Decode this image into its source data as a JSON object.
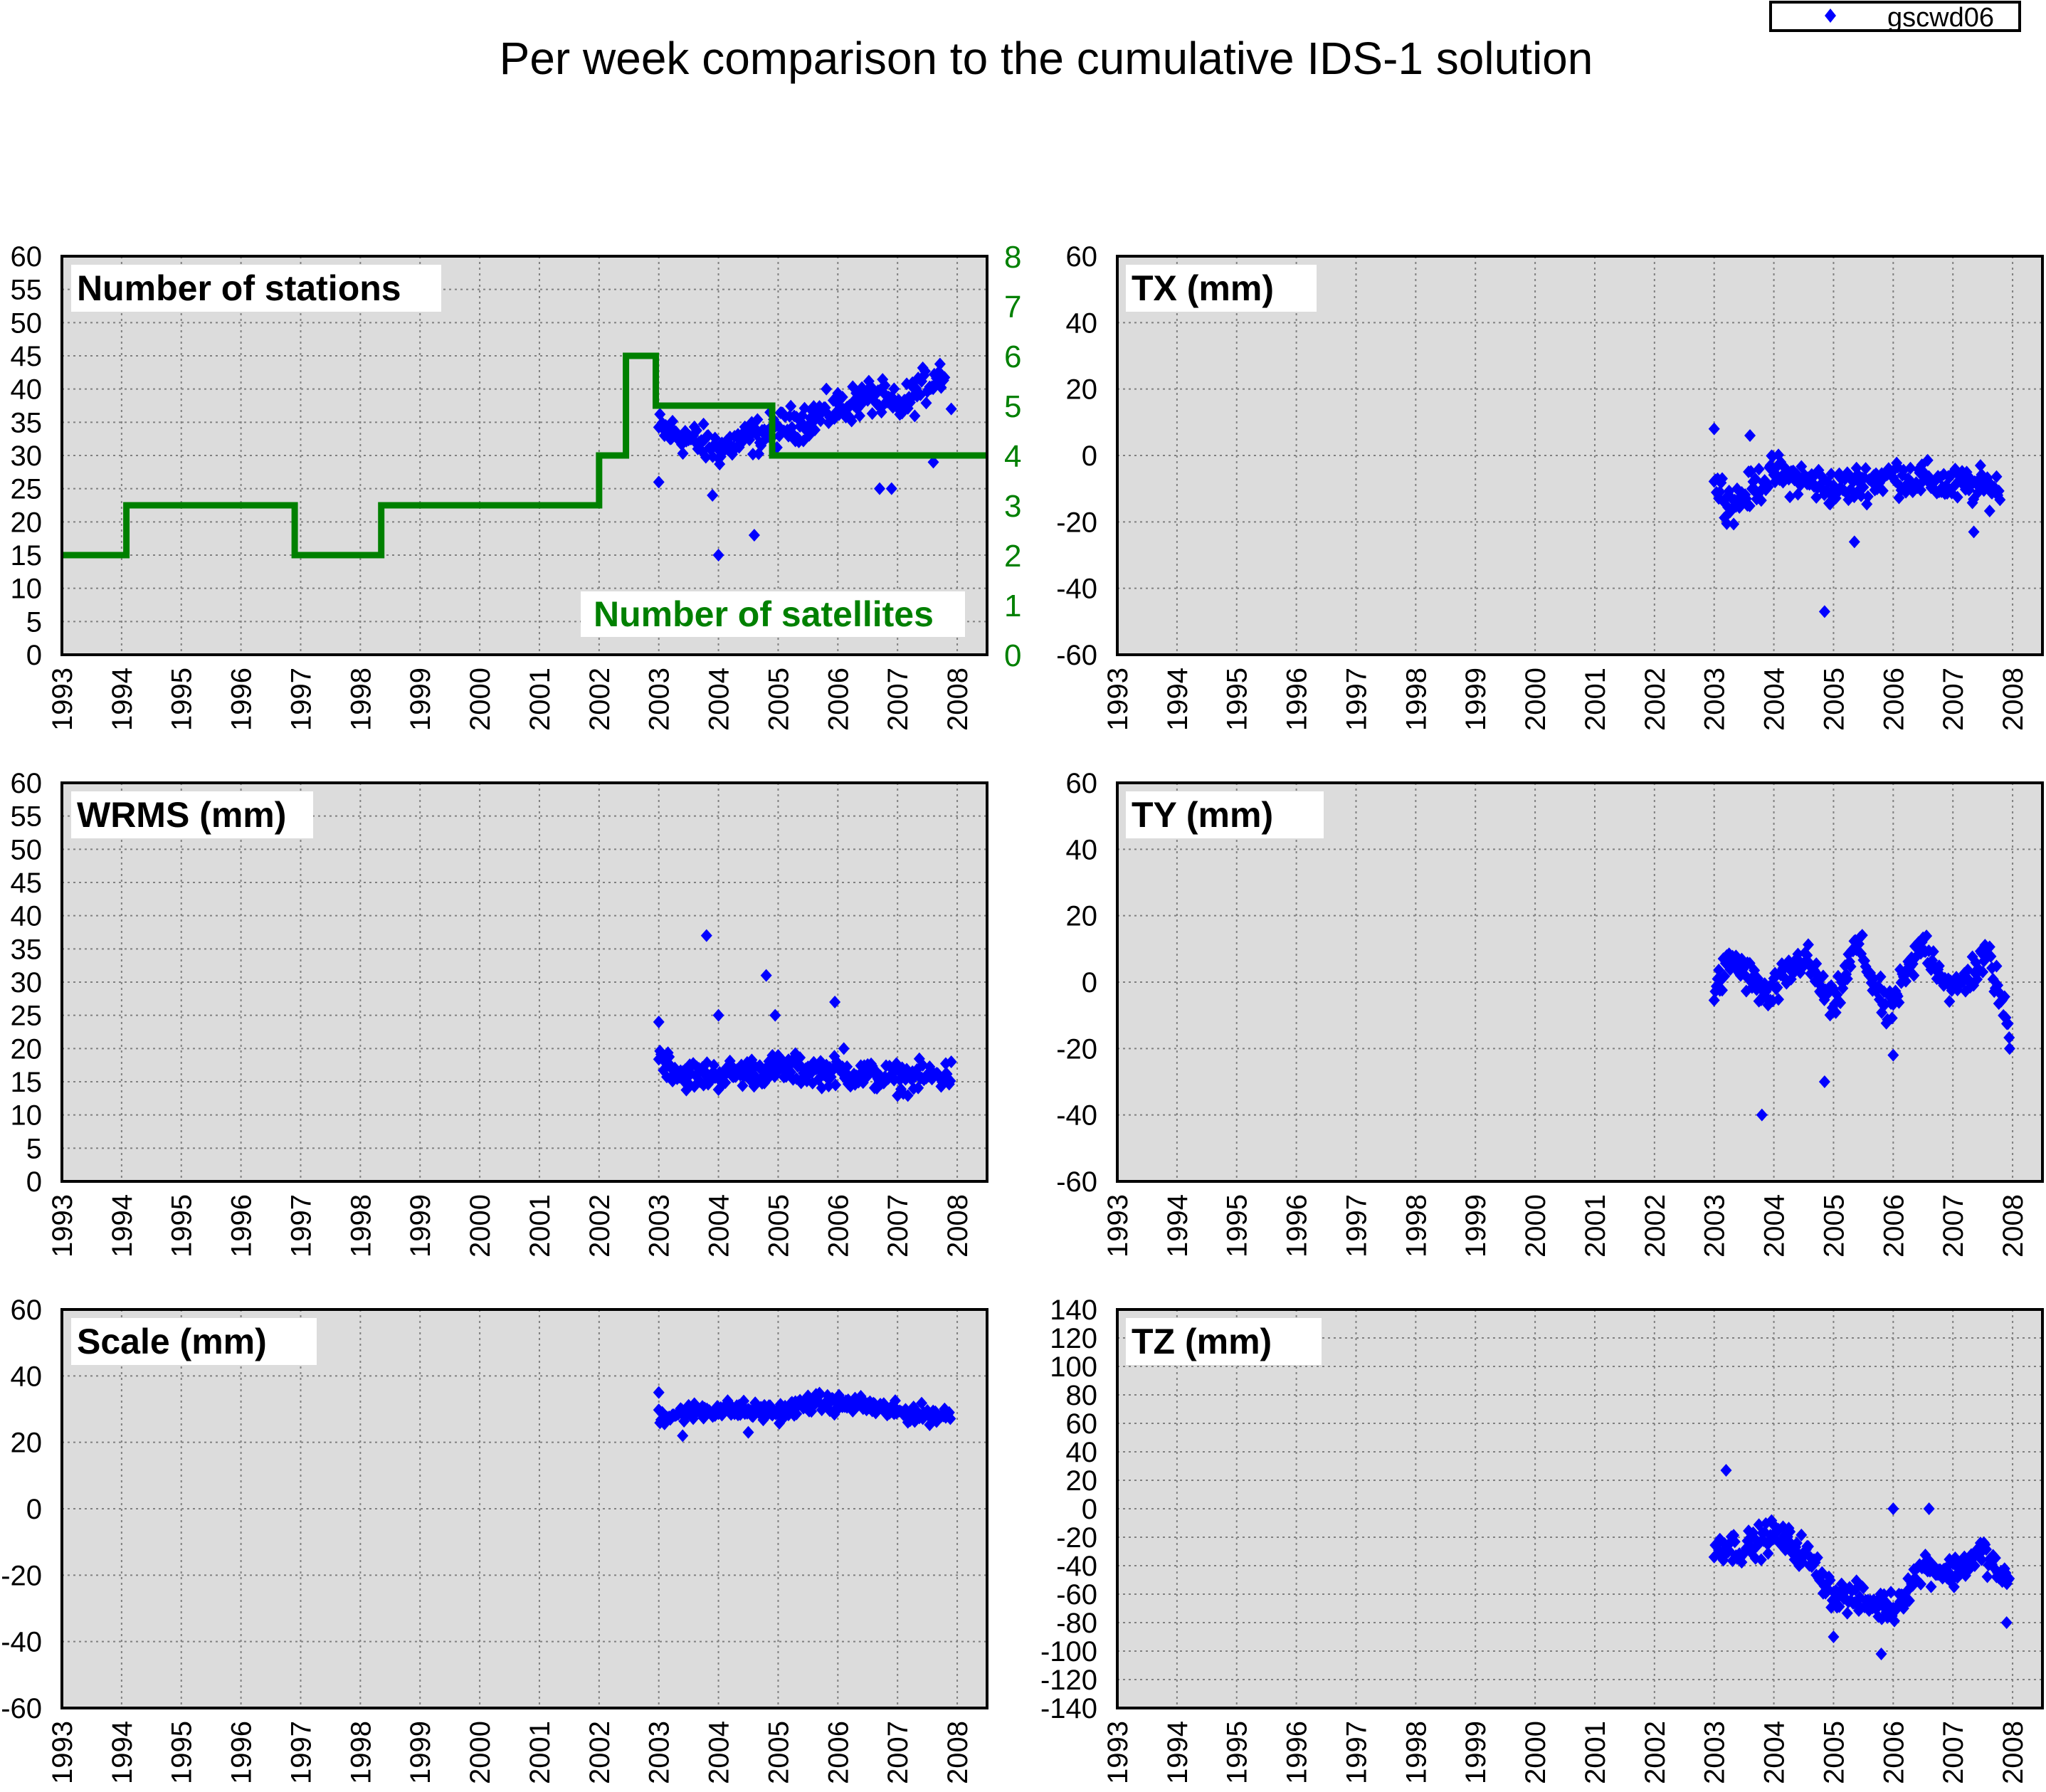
{
  "title": "Per week comparison to the cumulative IDS-1 solution",
  "legend": {
    "label": "gscwd06",
    "color": "#0000ff"
  },
  "colors": {
    "points": "#0000ff",
    "satellites_line": "#008000",
    "plot_bg": "#dcdcdc",
    "grid": "#808080"
  },
  "chart_data": [
    {
      "type": "scatter",
      "id": "stations",
      "label": "Number of stations",
      "secondary_label": "Number of satellites",
      "xlim": [
        1993,
        2008.5
      ],
      "x_ticks": [
        "1993",
        "1994",
        "1995",
        "1996",
        "1997",
        "1998",
        "1999",
        "2000",
        "2001",
        "2002",
        "2003",
        "2004",
        "2005",
        "2006",
        "2007",
        "2008"
      ],
      "ylim": [
        0,
        60
      ],
      "y_ticks": [
        "0",
        "5",
        "10",
        "15",
        "20",
        "25",
        "30",
        "35",
        "40",
        "45",
        "50",
        "55",
        "60"
      ],
      "y2lim": [
        0,
        8
      ],
      "y2_ticks": [
        "0",
        "1",
        "2",
        "3",
        "4",
        "5",
        "6",
        "7",
        "8"
      ],
      "grid": true,
      "series": [
        {
          "name": "gscwd06",
          "shape": "diamond",
          "trend": [
            [
              2003.0,
              34
            ],
            [
              2004.0,
              31
            ],
            [
              2005.0,
              34
            ],
            [
              2006.0,
              37
            ],
            [
              2006.6,
              39
            ],
            [
              2007.0,
              37
            ],
            [
              2007.8,
              43
            ]
          ],
          "spread": 2.5,
          "outliers": [
            [
              2003.0,
              26
            ],
            [
              2003.9,
              24
            ],
            [
              2004.0,
              15
            ],
            [
              2004.6,
              18
            ],
            [
              2006.7,
              25
            ],
            [
              2006.9,
              25
            ],
            [
              2007.6,
              29
            ],
            [
              2007.9,
              37
            ]
          ]
        },
        {
          "name": "Number of satellites",
          "type": "step",
          "axis": "y2",
          "points": [
            [
              1993.0,
              2
            ],
            [
              1994.08,
              3
            ],
            [
              1996.9,
              2
            ],
            [
              1998.35,
              3
            ],
            [
              2002.0,
              4
            ],
            [
              2002.45,
              6
            ],
            [
              2002.95,
              5
            ],
            [
              2004.9,
              4
            ],
            [
              2008.5,
              4
            ]
          ]
        }
      ]
    },
    {
      "type": "scatter",
      "id": "tx",
      "label": "TX (mm)",
      "xlim": [
        1993,
        2008.5
      ],
      "x_ticks": [
        "1993",
        "1994",
        "1995",
        "1996",
        "1997",
        "1998",
        "1999",
        "2000",
        "2001",
        "2002",
        "2003",
        "2004",
        "2005",
        "2006",
        "2007",
        "2008"
      ],
      "ylim": [
        -60,
        60
      ],
      "y_ticks": [
        "-60",
        "-40",
        "-20",
        "0",
        "20",
        "40",
        "60"
      ],
      "grid": true,
      "series": [
        {
          "name": "gscwd06",
          "shape": "diamond",
          "trend": [
            [
              2003.0,
              -8
            ],
            [
              2003.3,
              -15
            ],
            [
              2004.0,
              -5
            ],
            [
              2005.0,
              -10
            ],
            [
              2006.0,
              -6
            ],
            [
              2007.0,
              -9
            ],
            [
              2007.8,
              -10
            ]
          ],
          "spread": 5,
          "outliers": [
            [
              2003.0,
              8
            ],
            [
              2003.6,
              6
            ],
            [
              2004.85,
              -47
            ],
            [
              2005.35,
              -26
            ],
            [
              2007.35,
              -23
            ]
          ]
        }
      ]
    },
    {
      "type": "scatter",
      "id": "wrms",
      "label": "WRMS (mm)",
      "xlim": [
        1993,
        2008.5
      ],
      "x_ticks": [
        "1993",
        "1994",
        "1995",
        "1996",
        "1997",
        "1998",
        "1999",
        "2000",
        "2001",
        "2002",
        "2003",
        "2004",
        "2005",
        "2006",
        "2007",
        "2008"
      ],
      "ylim": [
        0,
        60
      ],
      "y_ticks": [
        "0",
        "5",
        "10",
        "15",
        "20",
        "25",
        "30",
        "35",
        "40",
        "45",
        "50",
        "55",
        "60"
      ],
      "grid": true,
      "series": [
        {
          "name": "gscwd06",
          "shape": "diamond",
          "trend": [
            [
              2003.0,
              19
            ],
            [
              2003.4,
              16
            ],
            [
              2004.0,
              16
            ],
            [
              2005.0,
              17
            ],
            [
              2006.0,
              16.5
            ],
            [
              2007.0,
              15.5
            ],
            [
              2007.9,
              16
            ]
          ],
          "spread": 2,
          "outliers": [
            [
              2003.8,
              37
            ],
            [
              2004.0,
              25
            ],
            [
              2004.8,
              31
            ],
            [
              2004.95,
              25
            ],
            [
              2005.95,
              27
            ],
            [
              2006.1,
              20
            ],
            [
              2003.0,
              24
            ],
            [
              2007.9,
              18
            ]
          ]
        }
      ]
    },
    {
      "type": "scatter",
      "id": "ty",
      "label": "TY (mm)",
      "xlim": [
        1993,
        2008.5
      ],
      "x_ticks": [
        "1993",
        "1994",
        "1995",
        "1996",
        "1997",
        "1998",
        "1999",
        "2000",
        "2001",
        "2002",
        "2003",
        "2004",
        "2005",
        "2006",
        "2007",
        "2008"
      ],
      "ylim": [
        -60,
        60
      ],
      "y_ticks": [
        "-60",
        "-40",
        "-20",
        "0",
        "20",
        "40",
        "60"
      ],
      "grid": true,
      "series": [
        {
          "name": "gscwd06",
          "shape": "diamond",
          "trend": [
            [
              2003.0,
              -3
            ],
            [
              2003.3,
              7
            ],
            [
              2003.9,
              -5
            ],
            [
              2004.5,
              8
            ],
            [
              2005.0,
              -8
            ],
            [
              2005.4,
              12
            ],
            [
              2005.9,
              -10
            ],
            [
              2006.5,
              12
            ],
            [
              2007.0,
              -3
            ],
            [
              2007.6,
              8
            ],
            [
              2007.95,
              -15
            ]
          ],
          "spread": 5,
          "outliers": [
            [
              2003.8,
              -40
            ],
            [
              2004.85,
              -30
            ],
            [
              2006.0,
              -22
            ],
            [
              2007.95,
              -20
            ]
          ]
        }
      ]
    },
    {
      "type": "scatter",
      "id": "scale",
      "label": "Scale (mm)",
      "xlim": [
        1993,
        2008.5
      ],
      "x_ticks": [
        "1993",
        "1994",
        "1995",
        "1996",
        "1997",
        "1998",
        "1999",
        "2000",
        "2001",
        "2002",
        "2003",
        "2004",
        "2005",
        "2006",
        "2007",
        "2008"
      ],
      "ylim": [
        -60,
        60
      ],
      "y_ticks": [
        "-60",
        "-40",
        "-20",
        "0",
        "20",
        "40",
        "60"
      ],
      "grid": true,
      "series": [
        {
          "name": "gscwd06",
          "shape": "diamond",
          "trend": [
            [
              2003.0,
              28
            ],
            [
              2004.0,
              30
            ],
            [
              2005.0,
              29
            ],
            [
              2005.6,
              32
            ],
            [
              2006.5,
              31
            ],
            [
              2007.0,
              29
            ],
            [
              2007.9,
              28
            ]
          ],
          "spread": 2.5,
          "outliers": [
            [
              2003.0,
              35
            ],
            [
              2003.4,
              22
            ],
            [
              2004.5,
              23
            ],
            [
              2005.5,
              34
            ]
          ]
        }
      ]
    },
    {
      "type": "scatter",
      "id": "tz",
      "label": "TZ (mm)",
      "xlim": [
        1993,
        2008.5
      ],
      "x_ticks": [
        "1993",
        "1994",
        "1995",
        "1996",
        "1997",
        "1998",
        "1999",
        "2000",
        "2001",
        "2002",
        "2003",
        "2004",
        "2005",
        "2006",
        "2007",
        "2008"
      ],
      "ylim": [
        -140,
        140
      ],
      "y_ticks": [
        "-140",
        "-120",
        "-100",
        "-80",
        "-60",
        "-40",
        "-20",
        "0",
        "20",
        "40",
        "60",
        "80",
        "100",
        "120",
        "140"
      ],
      "grid": true,
      "series": [
        {
          "name": "gscwd06",
          "shape": "diamond",
          "trend": [
            [
              2003.0,
              -25
            ],
            [
              2003.5,
              -28
            ],
            [
              2004.0,
              -18
            ],
            [
              2004.5,
              -30
            ],
            [
              2005.0,
              -60
            ],
            [
              2005.5,
              -65
            ],
            [
              2006.0,
              -70
            ],
            [
              2006.5,
              -40
            ],
            [
              2007.0,
              -45
            ],
            [
              2007.5,
              -30
            ],
            [
              2007.95,
              -55
            ]
          ],
          "spread": 10,
          "outliers": [
            [
              2003.2,
              27
            ],
            [
              2005.8,
              -102
            ],
            [
              2006.0,
              0
            ],
            [
              2006.6,
              0
            ],
            [
              2005.0,
              -90
            ],
            [
              2007.9,
              -80
            ]
          ]
        }
      ]
    }
  ]
}
